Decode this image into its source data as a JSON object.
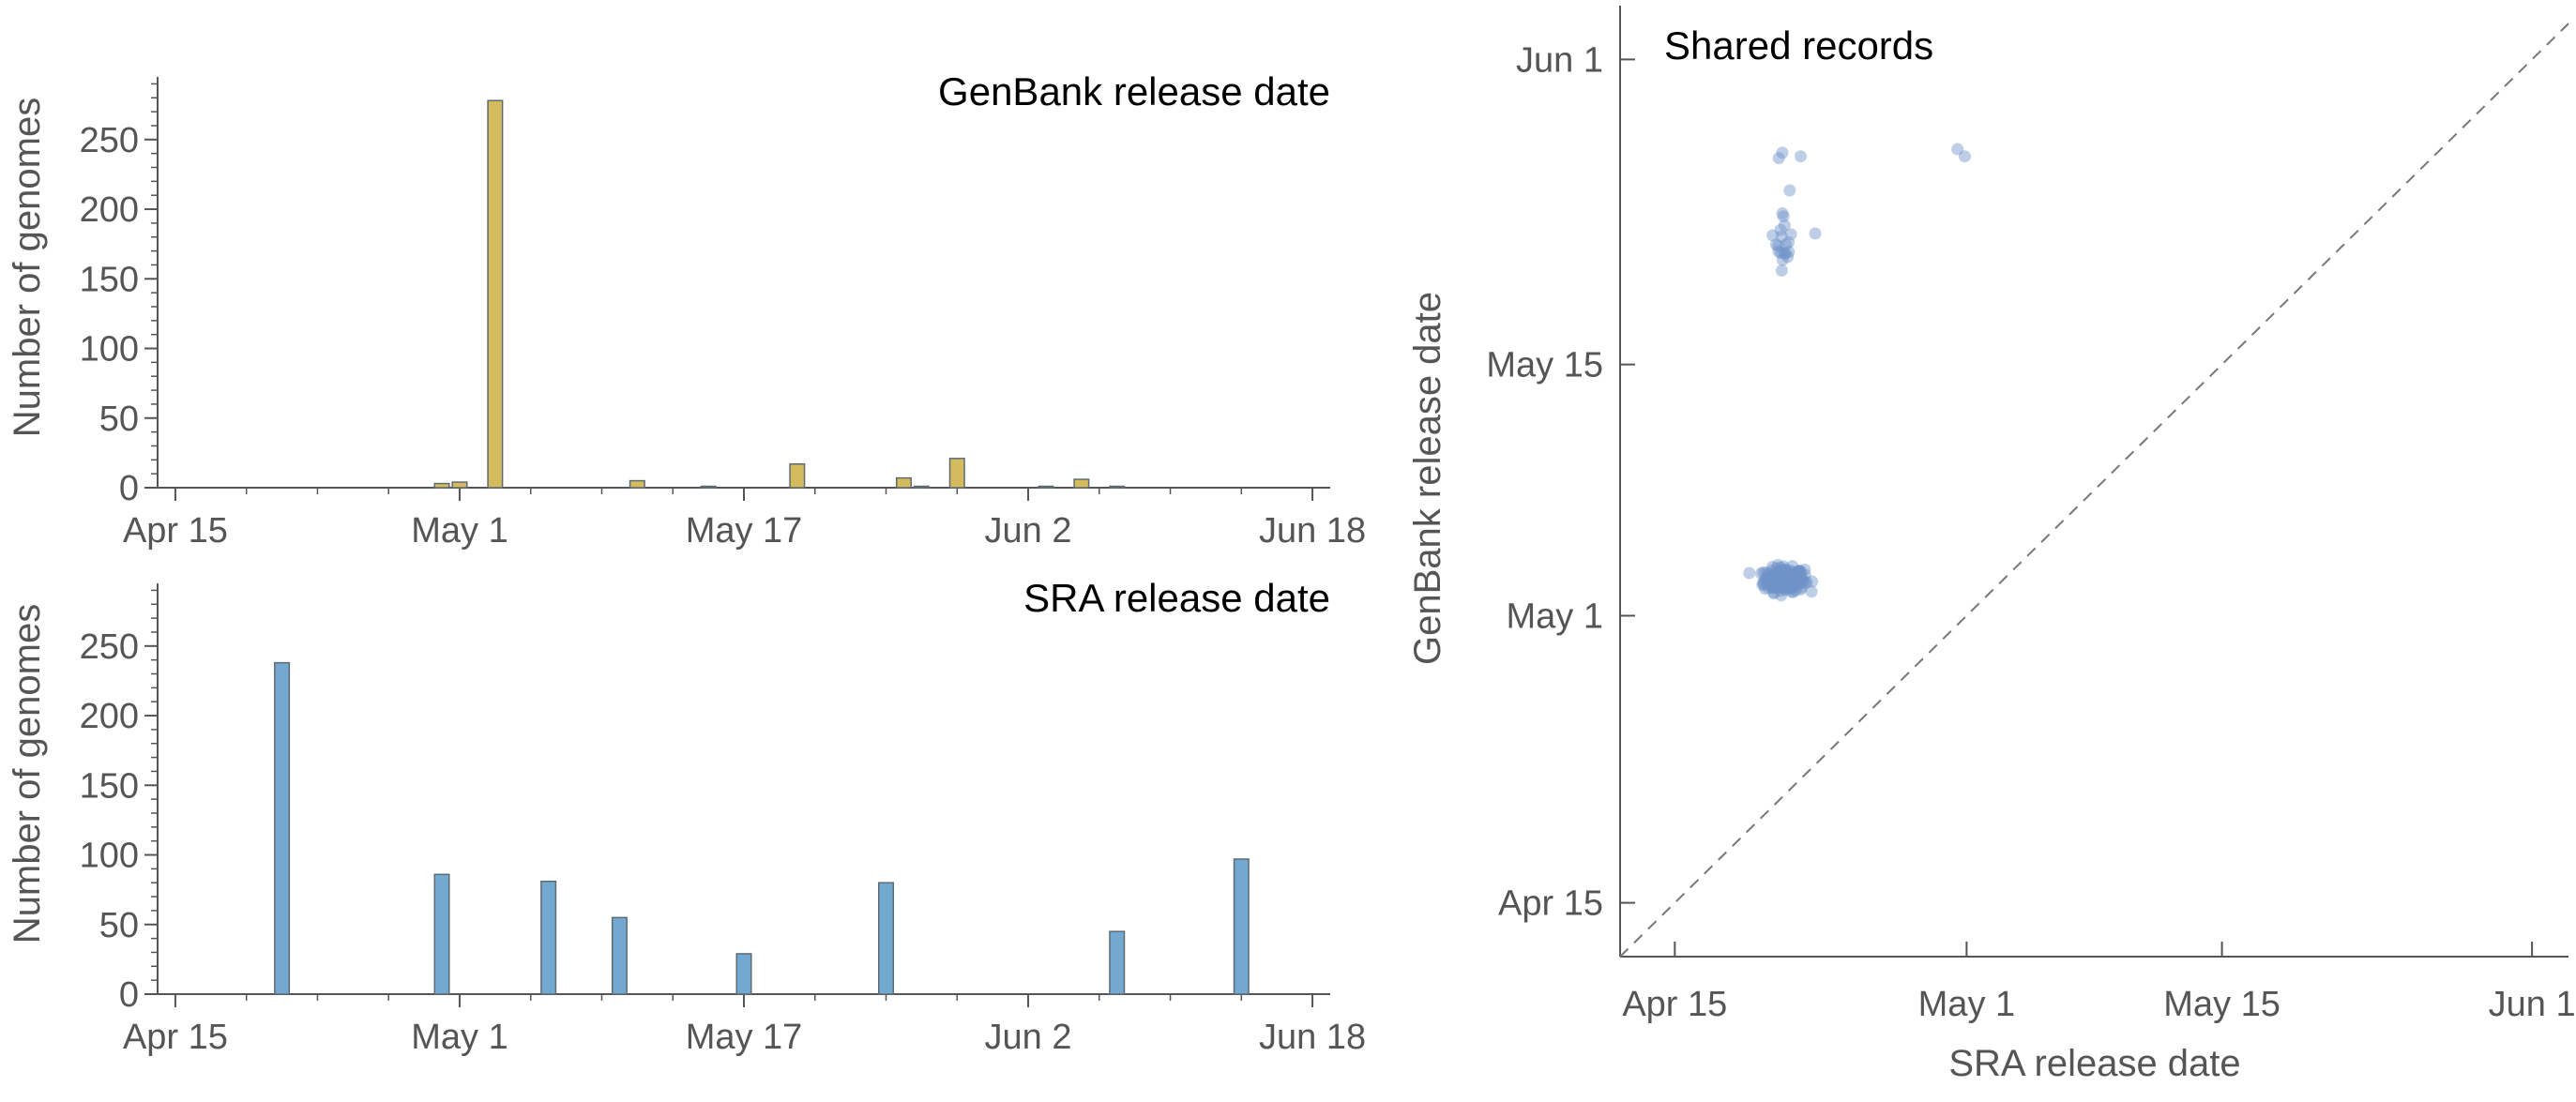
{
  "chart_data": [
    {
      "type": "bar",
      "title": "GenBank release date",
      "xlabel": "",
      "ylabel": "Number of genomes",
      "x_unit": "date (2020)",
      "xlim": [
        "Apr 14",
        "Jun 19"
      ],
      "ylim": [
        0,
        295
      ],
      "xticks": [
        "Apr 15",
        "May 1",
        "May 17",
        "Jun 2",
        "Jun 18"
      ],
      "yticks": [
        0,
        50,
        100,
        150,
        200,
        250
      ],
      "color": "#d4bb5e",
      "grid": false,
      "bars": [
        {
          "x": "Apr 30",
          "value": 3
        },
        {
          "x": "May 1",
          "value": 4
        },
        {
          "x": "May 3",
          "value": 278
        },
        {
          "x": "May 11",
          "value": 5
        },
        {
          "x": "May 15",
          "value": 1
        },
        {
          "x": "May 20",
          "value": 17
        },
        {
          "x": "May 26",
          "value": 7
        },
        {
          "x": "May 27",
          "value": 1
        },
        {
          "x": "May 29",
          "value": 21
        },
        {
          "x": "Jun 3",
          "value": 1
        },
        {
          "x": "Jun 5",
          "value": 6
        },
        {
          "x": "Jun 7",
          "value": 1
        }
      ]
    },
    {
      "type": "bar",
      "title": "SRA release date",
      "xlabel": "",
      "ylabel": "Number of genomes",
      "x_unit": "date (2020)",
      "xlim": [
        "Apr 14",
        "Jun 19"
      ],
      "ylim": [
        0,
        295
      ],
      "xticks": [
        "Apr 15",
        "May 1",
        "May 17",
        "Jun 2",
        "Jun 18"
      ],
      "yticks": [
        0,
        50,
        100,
        150,
        200,
        250
      ],
      "color": "#73a8d1",
      "grid": false,
      "bars": [
        {
          "x": "Apr 21",
          "value": 238
        },
        {
          "x": "Apr 30",
          "value": 86
        },
        {
          "x": "May 6",
          "value": 81
        },
        {
          "x": "May 10",
          "value": 55
        },
        {
          "x": "May 17",
          "value": 29
        },
        {
          "x": "May 25",
          "value": 80
        },
        {
          "x": "Jun 7",
          "value": 45
        },
        {
          "x": "Jun 14",
          "value": 97
        }
      ]
    },
    {
      "type": "scatter",
      "title": "Shared records",
      "xlabel": "SRA release date",
      "ylabel": "GenBank release date",
      "x_unit": "date (2020)",
      "xlim": [
        "Apr 12",
        "Jun 3"
      ],
      "ylim": [
        "Apr 12",
        "Jun 4"
      ],
      "xticks": [
        "Apr 15",
        "May 1",
        "May 15",
        "Jun 1"
      ],
      "yticks": [
        "Apr 15",
        "May 1",
        "May 15",
        "Jun 1"
      ],
      "point_color": "#6f93c8",
      "reference_line": "y = x (dashed)",
      "grid": false,
      "clusters": [
        {
          "x": "Apr 21",
          "y": "May 3",
          "count": 240,
          "x_spread_days": 1.0,
          "y_spread_days": 0.6
        },
        {
          "x": "Apr 21",
          "y": "May 22",
          "count": 18,
          "x_spread_days": 0.4,
          "y_spread_days": 1.5
        }
      ],
      "points": [
        {
          "x": "Apr 20.9",
          "y": "May 26.8"
        },
        {
          "x": "Apr 20.7",
          "y": "May 26.5"
        },
        {
          "x": "Apr 21.9",
          "y": "May 26.6"
        },
        {
          "x": "Apr 21.3",
          "y": "May 24.7"
        },
        {
          "x": "Apr 20.8",
          "y": "May 22.5"
        },
        {
          "x": "Apr 22.7",
          "y": "May 22.3"
        },
        {
          "x": "Apr 30.5",
          "y": "May 27"
        },
        {
          "x": "Apr 30.9",
          "y": "May 26.6"
        }
      ]
    }
  ]
}
